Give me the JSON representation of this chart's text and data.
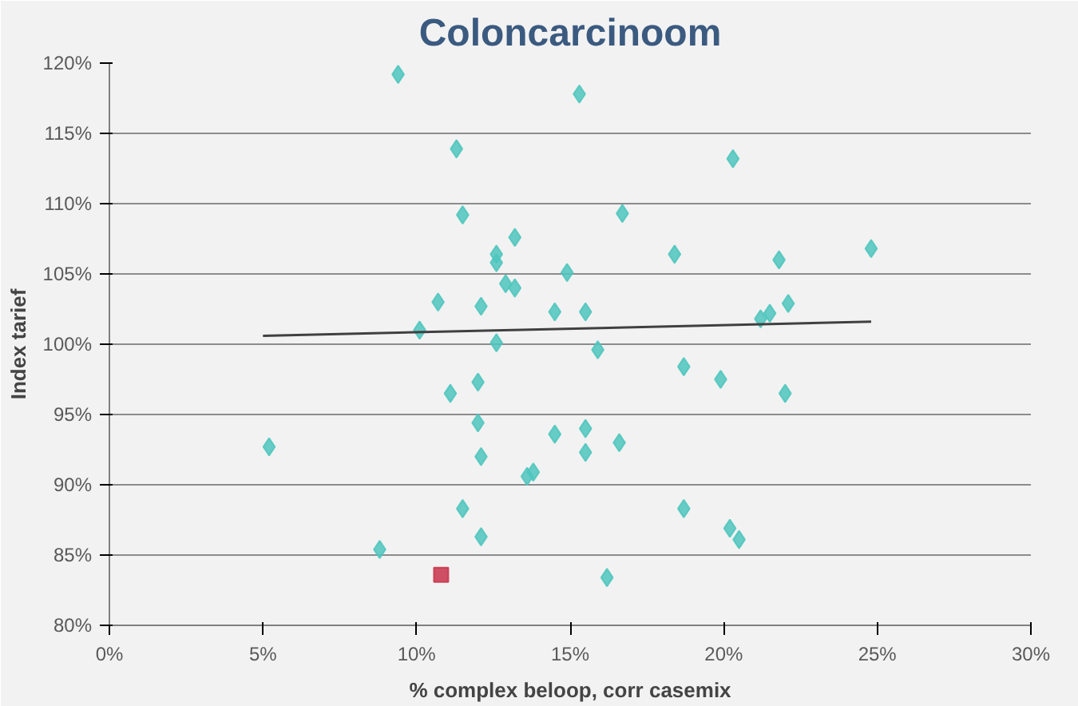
{
  "chart_data": {
    "type": "scatter",
    "title": "Coloncarcinoom",
    "xlabel": "% complex beloop, corr casemix",
    "ylabel": "Index tarief",
    "xlim": [
      0,
      30
    ],
    "xticks": [
      {
        "value": 0,
        "label": "0%"
      },
      {
        "value": 5,
        "label": "5%"
      },
      {
        "value": 10,
        "label": "10%"
      },
      {
        "value": 15,
        "label": "15%"
      },
      {
        "value": 20,
        "label": "20%"
      },
      {
        "value": 25,
        "label": "25%"
      },
      {
        "value": 30,
        "label": "30%"
      }
    ],
    "ylim": [
      80,
      120
    ],
    "yticks": [
      {
        "value": 80,
        "label": "80%"
      },
      {
        "value": 85,
        "label": "85%"
      },
      {
        "value": 90,
        "label": "90%"
      },
      {
        "value": 95,
        "label": "95%"
      },
      {
        "value": 100,
        "label": "100%"
      },
      {
        "value": 105,
        "label": "105%"
      },
      {
        "value": 110,
        "label": "110%"
      },
      {
        "value": 115,
        "label": "115%"
      },
      {
        "value": 120,
        "label": "120%"
      }
    ],
    "grid": "y",
    "marker": "diamond",
    "series": [
      {
        "color": "#4ec5bd",
        "x": [
          9.4,
          15.3,
          11.3,
          11.5,
          13.2,
          12.6,
          12.6,
          14.9,
          12.9,
          13.2,
          10.7,
          12.1,
          14.5,
          15.5,
          10.1,
          12.6,
          20.3,
          16.7,
          18.4,
          21.8,
          24.8,
          21.2,
          21.5,
          22.1,
          12.0,
          11.1,
          12.0,
          14.5,
          15.5,
          5.2,
          12.1,
          15.5,
          13.6,
          13.8,
          11.5,
          12.1,
          8.8,
          15.9,
          18.7,
          19.9,
          22.0,
          16.6,
          18.7,
          20.2,
          20.5,
          16.2
        ],
        "values": [
          119.2,
          117.8,
          113.9,
          109.2,
          107.6,
          106.4,
          105.8,
          105.1,
          104.3,
          104.0,
          103.0,
          102.7,
          102.3,
          102.3,
          101.0,
          100.1,
          113.2,
          109.3,
          106.4,
          106.0,
          106.8,
          101.8,
          102.2,
          102.9,
          97.3,
          96.5,
          94.4,
          93.6,
          94.0,
          92.7,
          92.0,
          92.3,
          90.6,
          90.9,
          88.3,
          86.3,
          85.4,
          99.6,
          98.4,
          97.5,
          96.5,
          93.0,
          88.3,
          86.9,
          86.1,
          83.4
        ]
      },
      {
        "color": "#c8324a",
        "marker": "square",
        "x": [
          10.8
        ],
        "values": [
          83.6
        ]
      },
      {
        "type": "line",
        "color": "#404040",
        "marker": "none",
        "x": [
          5.0,
          24.8
        ],
        "values": [
          100.6,
          101.6
        ]
      }
    ]
  }
}
